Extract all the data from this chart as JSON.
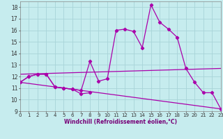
{
  "xlabel": "Windchill (Refroidissement éolien,°C)",
  "bg_color": "#c6ecee",
  "grid_color": "#a8d4d8",
  "line_color": "#aa00aa",
  "xlim": [
    0,
    23
  ],
  "ylim": [
    9,
    18.5
  ],
  "xticks": [
    0,
    1,
    2,
    3,
    4,
    5,
    6,
    7,
    8,
    9,
    10,
    11,
    12,
    13,
    14,
    15,
    16,
    17,
    18,
    19,
    20,
    21,
    22,
    23
  ],
  "yticks": [
    9,
    10,
    11,
    12,
    13,
    14,
    15,
    16,
    17,
    18
  ],
  "series1_x": [
    0,
    1,
    2,
    3,
    4,
    5,
    6,
    7,
    8,
    9,
    10,
    11,
    12,
    13,
    14,
    15,
    16,
    17,
    18,
    19,
    20,
    21,
    22,
    23
  ],
  "series1_y": [
    11.5,
    12.0,
    12.2,
    12.2,
    11.1,
    11.0,
    10.9,
    10.8,
    13.3,
    11.6,
    11.8,
    16.0,
    16.1,
    15.9,
    14.5,
    18.2,
    16.7,
    16.1,
    15.4,
    12.7,
    11.5,
    10.6,
    10.6,
    9.2
  ],
  "series2_x": [
    0,
    1,
    2,
    3,
    4,
    5,
    6,
    7,
    8
  ],
  "series2_y": [
    11.5,
    12.0,
    12.2,
    12.2,
    11.1,
    11.0,
    10.9,
    10.5,
    10.6
  ],
  "series3_x": [
    0,
    23
  ],
  "series3_y": [
    12.2,
    12.7
  ],
  "series4_x": [
    0,
    23
  ],
  "series4_y": [
    11.5,
    9.2
  ]
}
